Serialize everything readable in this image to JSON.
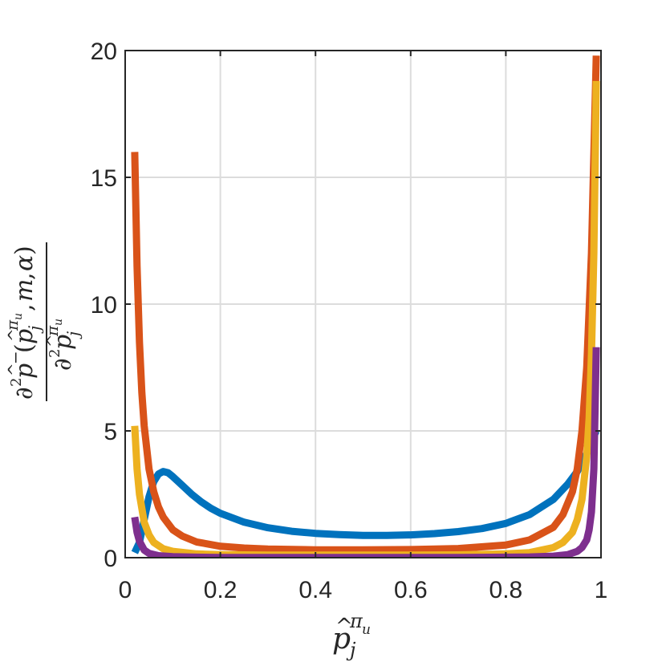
{
  "chart_data": {
    "type": "line",
    "title": "",
    "xlabel": "p̂_j^{π_u}",
    "ylabel": "∂²p̂⁻(p̂_j^{π_u}, m, α) / ∂²p̂_j^{π_u}",
    "xlim": [
      0,
      1
    ],
    "ylim": [
      0,
      20
    ],
    "x_ticks": [
      0,
      0.2,
      0.4,
      0.6,
      0.8,
      1
    ],
    "x_tick_labels": [
      "0",
      "0.2",
      "0.4",
      "0.6",
      "0.8",
      "1"
    ],
    "y_ticks": [
      0,
      5,
      10,
      15,
      20
    ],
    "y_tick_labels": [
      "0",
      "5",
      "10",
      "15",
      "20"
    ],
    "grid": true,
    "legend": "none",
    "series": [
      {
        "color": "#0072BD",
        "x": [
          0.02,
          0.03,
          0.04,
          0.05,
          0.06,
          0.07,
          0.08,
          0.09,
          0.1,
          0.12,
          0.14,
          0.16,
          0.18,
          0.2,
          0.25,
          0.3,
          0.35,
          0.4,
          0.45,
          0.5,
          0.55,
          0.6,
          0.65,
          0.7,
          0.75,
          0.8,
          0.85,
          0.9,
          0.93,
          0.95,
          0.97,
          0.98,
          0.99
        ],
        "y": [
          0.2,
          0.6,
          1.5,
          2.4,
          3.0,
          3.3,
          3.4,
          3.35,
          3.2,
          2.85,
          2.5,
          2.2,
          1.95,
          1.75,
          1.4,
          1.18,
          1.04,
          0.96,
          0.91,
          0.88,
          0.88,
          0.9,
          0.95,
          1.03,
          1.15,
          1.35,
          1.7,
          2.3,
          2.9,
          3.4,
          4.1,
          4.6,
          5.0
        ]
      },
      {
        "color": "#D95319",
        "x": [
          0.02,
          0.025,
          0.03,
          0.035,
          0.04,
          0.05,
          0.06,
          0.07,
          0.08,
          0.1,
          0.12,
          0.15,
          0.2,
          0.25,
          0.3,
          0.4,
          0.5,
          0.6,
          0.7,
          0.8,
          0.85,
          0.9,
          0.92,
          0.94,
          0.95,
          0.96,
          0.97,
          0.98,
          0.99
        ],
        "y": [
          16.0,
          11.5,
          8.5,
          6.5,
          5.2,
          3.5,
          2.6,
          2.0,
          1.6,
          1.1,
          0.85,
          0.62,
          0.45,
          0.38,
          0.34,
          0.31,
          0.31,
          0.32,
          0.36,
          0.5,
          0.7,
          1.2,
          1.7,
          2.6,
          3.5,
          5.0,
          7.5,
          12.0,
          19.8
        ]
      },
      {
        "color": "#EDB120",
        "x": [
          0.02,
          0.025,
          0.03,
          0.04,
          0.05,
          0.06,
          0.08,
          0.1,
          0.15,
          0.2,
          0.3,
          0.4,
          0.5,
          0.6,
          0.7,
          0.8,
          0.85,
          0.9,
          0.92,
          0.94,
          0.95,
          0.96,
          0.97,
          0.975,
          0.98,
          0.985,
          0.99
        ],
        "y": [
          5.2,
          3.5,
          2.5,
          1.4,
          0.9,
          0.6,
          0.35,
          0.25,
          0.15,
          0.12,
          0.1,
          0.1,
          0.1,
          0.1,
          0.11,
          0.15,
          0.2,
          0.4,
          0.6,
          1.0,
          1.5,
          2.3,
          4.0,
          5.5,
          8.0,
          12.0,
          18.8
        ]
      },
      {
        "color": "#7E2F8E",
        "x": [
          0.02,
          0.025,
          0.03,
          0.04,
          0.05,
          0.07,
          0.1,
          0.15,
          0.2,
          0.3,
          0.5,
          0.7,
          0.8,
          0.85,
          0.9,
          0.93,
          0.95,
          0.96,
          0.97,
          0.975,
          0.98,
          0.985,
          0.99
        ],
        "y": [
          1.6,
          1.0,
          0.65,
          0.3,
          0.17,
          0.08,
          0.04,
          0.02,
          0.01,
          0.01,
          0.01,
          0.01,
          0.02,
          0.03,
          0.06,
          0.12,
          0.25,
          0.4,
          0.7,
          1.1,
          1.8,
          3.5,
          8.3
        ]
      }
    ]
  }
}
